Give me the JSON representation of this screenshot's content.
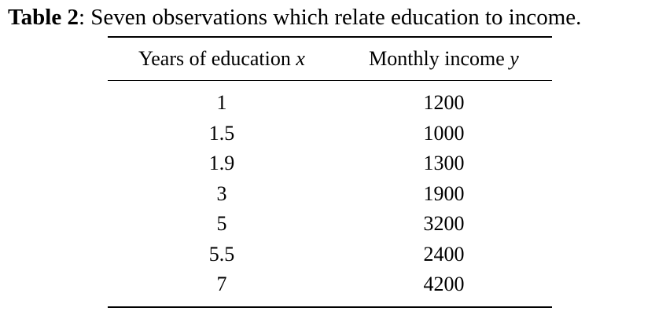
{
  "caption": {
    "label": "Table 2",
    "text": ": Seven observations which relate education to income."
  },
  "table": {
    "headers": [
      {
        "text": "Years of education ",
        "variable": "x"
      },
      {
        "text": "Monthly income ",
        "variable": "y"
      }
    ],
    "rows": [
      [
        "1",
        "1200"
      ],
      [
        "1.5",
        "1000"
      ],
      [
        "1.9",
        "1300"
      ],
      [
        "3",
        "1900"
      ],
      [
        "5",
        "3200"
      ],
      [
        "5.5",
        "2400"
      ],
      [
        "7",
        "4200"
      ]
    ]
  }
}
